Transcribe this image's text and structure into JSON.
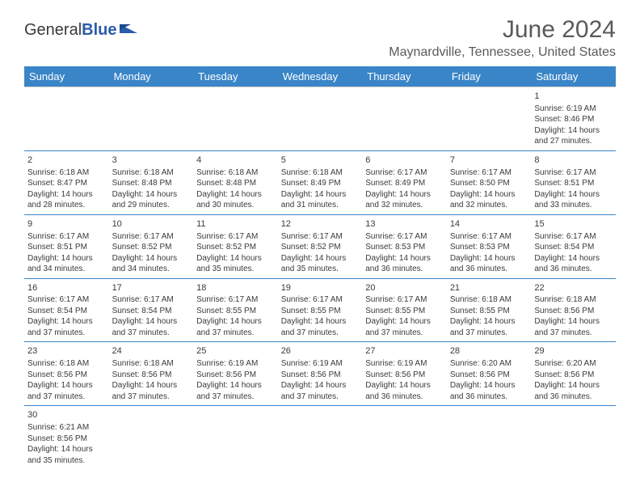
{
  "logo": {
    "part1": "General",
    "part2": "Blue"
  },
  "title": "June 2024",
  "location": "Maynardville, Tennessee, United States",
  "colors": {
    "header_bg": "#3a85c8",
    "header_text": "#ffffff",
    "border": "#3a85c8",
    "text": "#3a3a3a",
    "title": "#5a5a5a"
  },
  "weekdays": [
    "Sunday",
    "Monday",
    "Tuesday",
    "Wednesday",
    "Thursday",
    "Friday",
    "Saturday"
  ],
  "weeks": [
    [
      null,
      null,
      null,
      null,
      null,
      null,
      {
        "n": "1",
        "sr": "Sunrise: 6:19 AM",
        "ss": "Sunset: 8:46 PM",
        "d1": "Daylight: 14 hours",
        "d2": "and 27 minutes."
      }
    ],
    [
      {
        "n": "2",
        "sr": "Sunrise: 6:18 AM",
        "ss": "Sunset: 8:47 PM",
        "d1": "Daylight: 14 hours",
        "d2": "and 28 minutes."
      },
      {
        "n": "3",
        "sr": "Sunrise: 6:18 AM",
        "ss": "Sunset: 8:48 PM",
        "d1": "Daylight: 14 hours",
        "d2": "and 29 minutes."
      },
      {
        "n": "4",
        "sr": "Sunrise: 6:18 AM",
        "ss": "Sunset: 8:48 PM",
        "d1": "Daylight: 14 hours",
        "d2": "and 30 minutes."
      },
      {
        "n": "5",
        "sr": "Sunrise: 6:18 AM",
        "ss": "Sunset: 8:49 PM",
        "d1": "Daylight: 14 hours",
        "d2": "and 31 minutes."
      },
      {
        "n": "6",
        "sr": "Sunrise: 6:17 AM",
        "ss": "Sunset: 8:49 PM",
        "d1": "Daylight: 14 hours",
        "d2": "and 32 minutes."
      },
      {
        "n": "7",
        "sr": "Sunrise: 6:17 AM",
        "ss": "Sunset: 8:50 PM",
        "d1": "Daylight: 14 hours",
        "d2": "and 32 minutes."
      },
      {
        "n": "8",
        "sr": "Sunrise: 6:17 AM",
        "ss": "Sunset: 8:51 PM",
        "d1": "Daylight: 14 hours",
        "d2": "and 33 minutes."
      }
    ],
    [
      {
        "n": "9",
        "sr": "Sunrise: 6:17 AM",
        "ss": "Sunset: 8:51 PM",
        "d1": "Daylight: 14 hours",
        "d2": "and 34 minutes."
      },
      {
        "n": "10",
        "sr": "Sunrise: 6:17 AM",
        "ss": "Sunset: 8:52 PM",
        "d1": "Daylight: 14 hours",
        "d2": "and 34 minutes."
      },
      {
        "n": "11",
        "sr": "Sunrise: 6:17 AM",
        "ss": "Sunset: 8:52 PM",
        "d1": "Daylight: 14 hours",
        "d2": "and 35 minutes."
      },
      {
        "n": "12",
        "sr": "Sunrise: 6:17 AM",
        "ss": "Sunset: 8:52 PM",
        "d1": "Daylight: 14 hours",
        "d2": "and 35 minutes."
      },
      {
        "n": "13",
        "sr": "Sunrise: 6:17 AM",
        "ss": "Sunset: 8:53 PM",
        "d1": "Daylight: 14 hours",
        "d2": "and 36 minutes."
      },
      {
        "n": "14",
        "sr": "Sunrise: 6:17 AM",
        "ss": "Sunset: 8:53 PM",
        "d1": "Daylight: 14 hours",
        "d2": "and 36 minutes."
      },
      {
        "n": "15",
        "sr": "Sunrise: 6:17 AM",
        "ss": "Sunset: 8:54 PM",
        "d1": "Daylight: 14 hours",
        "d2": "and 36 minutes."
      }
    ],
    [
      {
        "n": "16",
        "sr": "Sunrise: 6:17 AM",
        "ss": "Sunset: 8:54 PM",
        "d1": "Daylight: 14 hours",
        "d2": "and 37 minutes."
      },
      {
        "n": "17",
        "sr": "Sunrise: 6:17 AM",
        "ss": "Sunset: 8:54 PM",
        "d1": "Daylight: 14 hours",
        "d2": "and 37 minutes."
      },
      {
        "n": "18",
        "sr": "Sunrise: 6:17 AM",
        "ss": "Sunset: 8:55 PM",
        "d1": "Daylight: 14 hours",
        "d2": "and 37 minutes."
      },
      {
        "n": "19",
        "sr": "Sunrise: 6:17 AM",
        "ss": "Sunset: 8:55 PM",
        "d1": "Daylight: 14 hours",
        "d2": "and 37 minutes."
      },
      {
        "n": "20",
        "sr": "Sunrise: 6:17 AM",
        "ss": "Sunset: 8:55 PM",
        "d1": "Daylight: 14 hours",
        "d2": "and 37 minutes."
      },
      {
        "n": "21",
        "sr": "Sunrise: 6:18 AM",
        "ss": "Sunset: 8:55 PM",
        "d1": "Daylight: 14 hours",
        "d2": "and 37 minutes."
      },
      {
        "n": "22",
        "sr": "Sunrise: 6:18 AM",
        "ss": "Sunset: 8:56 PM",
        "d1": "Daylight: 14 hours",
        "d2": "and 37 minutes."
      }
    ],
    [
      {
        "n": "23",
        "sr": "Sunrise: 6:18 AM",
        "ss": "Sunset: 8:56 PM",
        "d1": "Daylight: 14 hours",
        "d2": "and 37 minutes."
      },
      {
        "n": "24",
        "sr": "Sunrise: 6:18 AM",
        "ss": "Sunset: 8:56 PM",
        "d1": "Daylight: 14 hours",
        "d2": "and 37 minutes."
      },
      {
        "n": "25",
        "sr": "Sunrise: 6:19 AM",
        "ss": "Sunset: 8:56 PM",
        "d1": "Daylight: 14 hours",
        "d2": "and 37 minutes."
      },
      {
        "n": "26",
        "sr": "Sunrise: 6:19 AM",
        "ss": "Sunset: 8:56 PM",
        "d1": "Daylight: 14 hours",
        "d2": "and 37 minutes."
      },
      {
        "n": "27",
        "sr": "Sunrise: 6:19 AM",
        "ss": "Sunset: 8:56 PM",
        "d1": "Daylight: 14 hours",
        "d2": "and 36 minutes."
      },
      {
        "n": "28",
        "sr": "Sunrise: 6:20 AM",
        "ss": "Sunset: 8:56 PM",
        "d1": "Daylight: 14 hours",
        "d2": "and 36 minutes."
      },
      {
        "n": "29",
        "sr": "Sunrise: 6:20 AM",
        "ss": "Sunset: 8:56 PM",
        "d1": "Daylight: 14 hours",
        "d2": "and 36 minutes."
      }
    ],
    [
      {
        "n": "30",
        "sr": "Sunrise: 6:21 AM",
        "ss": "Sunset: 8:56 PM",
        "d1": "Daylight: 14 hours",
        "d2": "and 35 minutes."
      },
      null,
      null,
      null,
      null,
      null,
      null
    ]
  ]
}
